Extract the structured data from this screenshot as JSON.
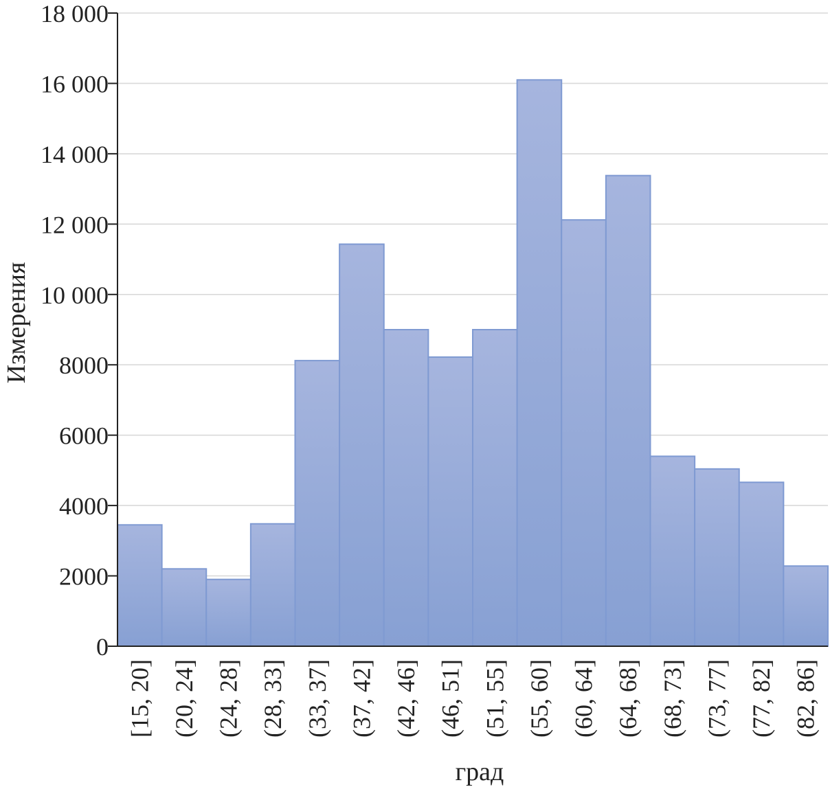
{
  "chart_data": {
    "type": "bar",
    "xlabel": "град",
    "ylabel": "Измерения",
    "ylim": [
      0,
      18000
    ],
    "y_ticks": [
      0,
      2000,
      4000,
      6000,
      8000,
      10000,
      12000,
      14000,
      16000,
      18000
    ],
    "y_tick_labels": [
      "0",
      "2000",
      "4000",
      "6000",
      "8000",
      "10 000",
      "12 000",
      "14 000",
      "16 000",
      "18 000"
    ],
    "categories": [
      "[15, 20]",
      "(20, 24]",
      "(24, 28]",
      "(28, 33]",
      "(33, 37]",
      "(37, 42]",
      "(42, 46]",
      "(46, 51]",
      "(51, 55]",
      "(55, 60]",
      "(60, 64]",
      "(64, 68]",
      "(68, 73]",
      "(73, 77]",
      "(77, 82]",
      "(82, 86]"
    ],
    "values": [
      3450,
      2200,
      1900,
      3480,
      8120,
      11430,
      9000,
      8220,
      9000,
      16100,
      12120,
      13380,
      5400,
      5040,
      4660,
      2280
    ],
    "grid": true,
    "legend": "none",
    "colors": {
      "bar_top": "#a6b5de",
      "bar_bottom": "#87a0d3",
      "bar_edge": "#7f9ad2",
      "grid": "#d9d9d9"
    }
  }
}
